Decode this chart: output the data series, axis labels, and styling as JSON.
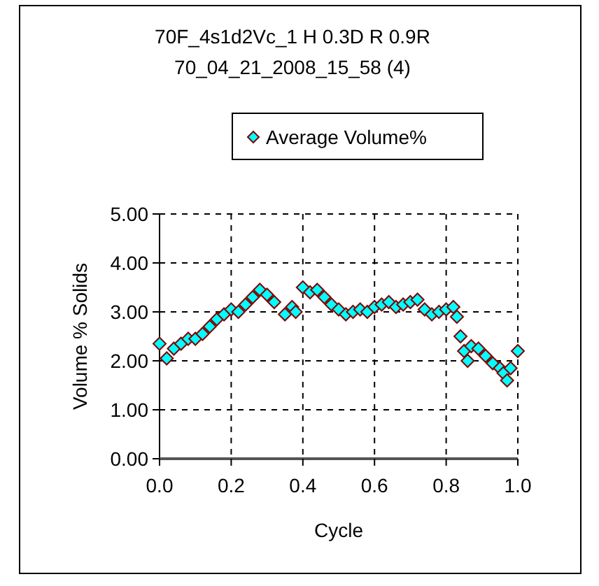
{
  "chart_data": {
    "type": "scatter",
    "title": "70F_4s1d2Vc_1 H 0.3D R  0.9R",
    "subtitle": "70_04_21_2008_15_58 (4)",
    "xlabel": "Cycle",
    "ylabel": "Volume % Solids",
    "xlim": [
      0,
      1
    ],
    "xticks": [
      {
        "value": 0,
        "label": "0.0"
      },
      {
        "value": 0.2,
        "label": "0.2"
      },
      {
        "value": 0.4,
        "label": "0.4"
      },
      {
        "value": 0.6,
        "label": "0.6"
      },
      {
        "value": 0.8,
        "label": "0.8"
      },
      {
        "value": 1,
        "label": "1.0"
      }
    ],
    "ylim": [
      0,
      5
    ],
    "yticks": [
      {
        "value": 0,
        "label": "0.00"
      },
      {
        "value": 1,
        "label": "1.00"
      },
      {
        "value": 2,
        "label": "2.00"
      },
      {
        "value": 3,
        "label": "3.00"
      },
      {
        "value": 4,
        "label": "4.00"
      },
      {
        "value": 5,
        "label": "5.00"
      }
    ],
    "grid": true,
    "legend": "top",
    "marker": "diamond",
    "series": [
      {
        "name": "Average Volume%",
        "color": "#00ffff",
        "x": [
          0,
          0.02,
          0.04,
          0.06,
          0.08,
          0.1,
          0.12,
          0.14,
          0.16,
          0.18,
          0.2,
          0.22,
          0.24,
          0.26,
          0.28,
          0.3,
          0.32,
          0.35,
          0.37,
          0.38,
          0.4,
          0.42,
          0.44,
          0.46,
          0.48,
          0.5,
          0.52,
          0.54,
          0.56,
          0.58,
          0.6,
          0.62,
          0.64,
          0.66,
          0.68,
          0.7,
          0.72,
          0.74,
          0.76,
          0.78,
          0.8,
          0.82,
          0.83,
          0.84,
          0.85,
          0.86,
          0.87,
          0.89,
          0.91,
          0.93,
          0.95,
          0.96,
          0.97,
          0.98,
          1.0
        ],
        "values": [
          2.35,
          2.05,
          2.25,
          2.35,
          2.45,
          2.45,
          2.55,
          2.7,
          2.85,
          2.95,
          3.05,
          3.0,
          3.15,
          3.3,
          3.45,
          3.35,
          3.2,
          2.95,
          3.1,
          3.0,
          3.5,
          3.4,
          3.45,
          3.3,
          3.15,
          3.05,
          2.95,
          3.0,
          3.05,
          3.0,
          3.1,
          3.15,
          3.2,
          3.1,
          3.15,
          3.2,
          3.25,
          3.05,
          2.95,
          3.0,
          3.05,
          3.1,
          2.9,
          2.5,
          2.2,
          2.0,
          2.3,
          2.25,
          2.1,
          1.95,
          1.85,
          1.75,
          1.6,
          1.85,
          2.2
        ]
      }
    ]
  }
}
